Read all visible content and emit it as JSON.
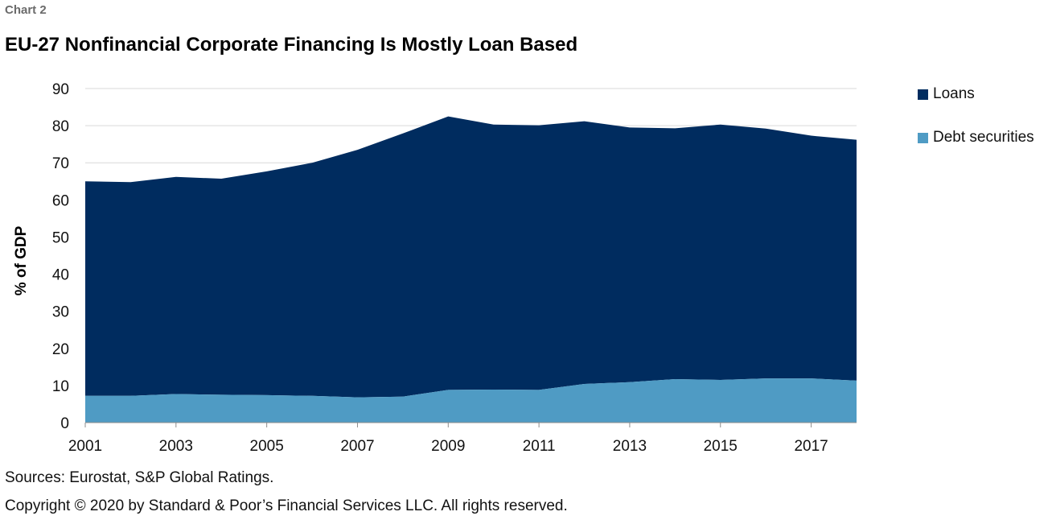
{
  "header": {
    "kicker": "Chart 2",
    "title": "EU-27 Nonfinancial Corporate Financing Is Mostly Loan Based"
  },
  "footer": {
    "sources": "Sources: Eurostat, S&P Global Ratings.",
    "copyright": "Copyright © 2020 by Standard & Poor’s Financial Services LLC. All rights reserved."
  },
  "colors": {
    "loans": "#002c5f",
    "debt_securities": "#4f9bc4",
    "grid": "#d9d9d9"
  },
  "chart_data": {
    "type": "area",
    "stacked": true,
    "title": "",
    "ylabel": "% of GDP",
    "xlabel": "",
    "ylim": [
      0,
      90
    ],
    "yticks": [
      0,
      10,
      20,
      30,
      40,
      50,
      60,
      70,
      80,
      90
    ],
    "xticks": [
      "2001",
      "2003",
      "2005",
      "2007",
      "2009",
      "2011",
      "2013",
      "2015",
      "2017"
    ],
    "x": [
      2001,
      2002,
      2003,
      2004,
      2005,
      2006,
      2007,
      2008,
      2009,
      2010,
      2011,
      2012,
      2013,
      2014,
      2015,
      2016,
      2017,
      2018
    ],
    "series": [
      {
        "name": "Debt securities",
        "values": [
          7.2,
          7.2,
          7.7,
          7.5,
          7.4,
          7.2,
          6.8,
          7.0,
          8.8,
          8.9,
          8.8,
          10.4,
          10.9,
          11.7,
          11.5,
          11.9,
          11.9,
          11.3
        ]
      },
      {
        "name": "Loans",
        "values": [
          57.8,
          57.6,
          58.5,
          58.2,
          60.3,
          62.8,
          66.7,
          70.9,
          73.7,
          71.4,
          71.3,
          70.8,
          68.6,
          67.6,
          68.8,
          67.3,
          65.4,
          64.9
        ]
      }
    ],
    "grid": true,
    "legend_position": "right"
  }
}
